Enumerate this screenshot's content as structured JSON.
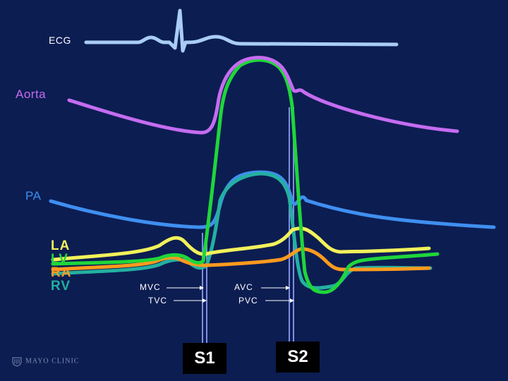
{
  "labels": {
    "ecg": "ECG",
    "aorta": "Aorta",
    "pa": "PA",
    "la": "LA",
    "lv": "LV",
    "ra": "RA",
    "rv": "RV"
  },
  "valves": {
    "mvc": "MVC",
    "tvc": "TVC",
    "avc": "AVC",
    "pvc": "PVC"
  },
  "heart_sounds": {
    "s1": "S1",
    "s2": "S2"
  },
  "logo": {
    "text": "MAYO CLINIC"
  },
  "colors": {
    "background": "#0c1d52",
    "ecg": "#a9cdf5",
    "aorta": "#c56cf0",
    "pa": "#3f8ff0",
    "la": "#f2f25a",
    "lv": "#1fd63a",
    "ra": "#ff9a1e",
    "rv": "#24b0a0",
    "marker_line": "#7f8de0",
    "sound_box": "#000000"
  }
}
